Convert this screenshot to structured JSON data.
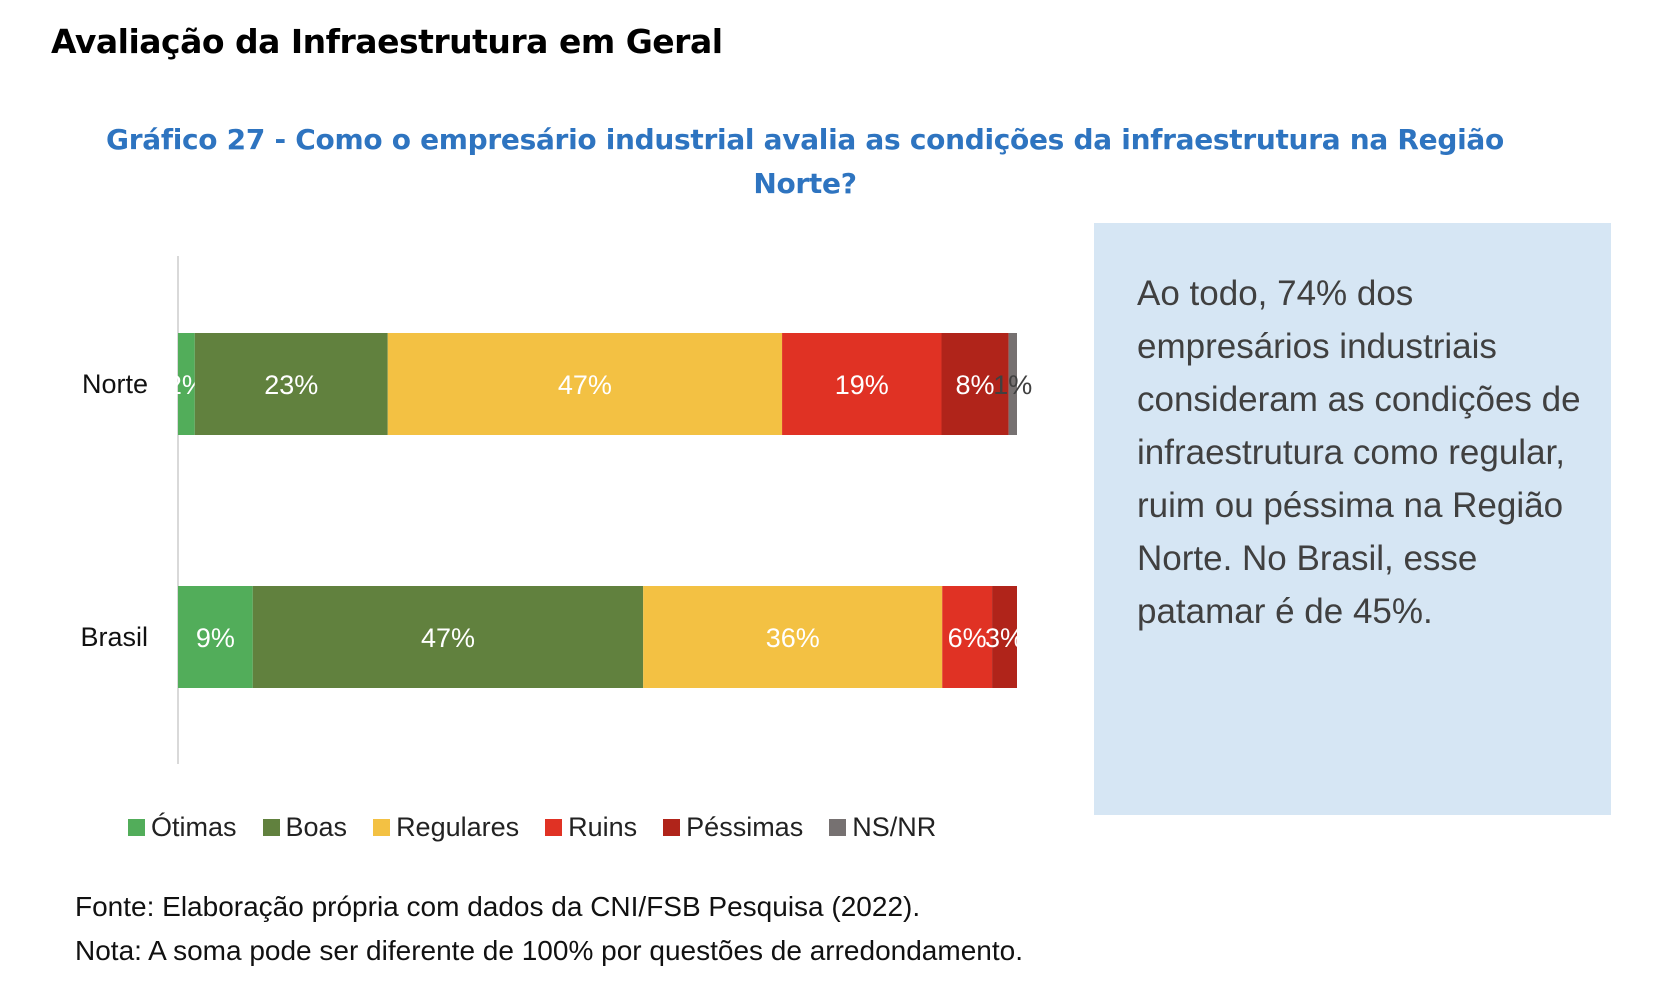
{
  "heading": "Avaliação da Infraestrutura em Geral",
  "chart_data": {
    "type": "bar",
    "orientation": "horizontal-stacked-100",
    "title_line1": "Gráfico 27 - Como o empresário industrial avalia as condições da infraestrutura na Região",
    "title_line2": "Norte?",
    "categories": [
      "Norte",
      "Brasil"
    ],
    "series": [
      {
        "name": "Ótimas",
        "color": "#52ad5a",
        "values": [
          2,
          9
        ],
        "labels": [
          "2%",
          "9%"
        ]
      },
      {
        "name": "Boas",
        "color": "#61813e",
        "values": [
          23,
          47
        ],
        "labels": [
          "23%",
          "47%"
        ]
      },
      {
        "name": "Regulares",
        "color": "#f3c143",
        "values": [
          47,
          36
        ],
        "labels": [
          "47%",
          "36%"
        ]
      },
      {
        "name": "Ruins",
        "color": "#e03224",
        "values": [
          19,
          6
        ],
        "labels": [
          "19%",
          "6%"
        ]
      },
      {
        "name": "Péssimas",
        "color": "#b0241a",
        "values": [
          8,
          3
        ],
        "labels": [
          "8%",
          "3%"
        ]
      },
      {
        "name": "NS/NR",
        "color": "#767171",
        "values": [
          1,
          0
        ],
        "labels": [
          "1%",
          ""
        ]
      }
    ],
    "legend_position": "bottom",
    "grid": false
  },
  "callout": "Ao todo, 74% dos empresários industriais consideram as condições de infraestrutura como regular, ruim ou péssima na Região Norte. No Brasil, esse patamar é de 45%.",
  "notes": {
    "source": "Fonte: Elaboração própria com dados da CNI/FSB Pesquisa (2022).",
    "note": "Nota: A soma pode ser diferente de 100% por questões de arredondamento."
  }
}
